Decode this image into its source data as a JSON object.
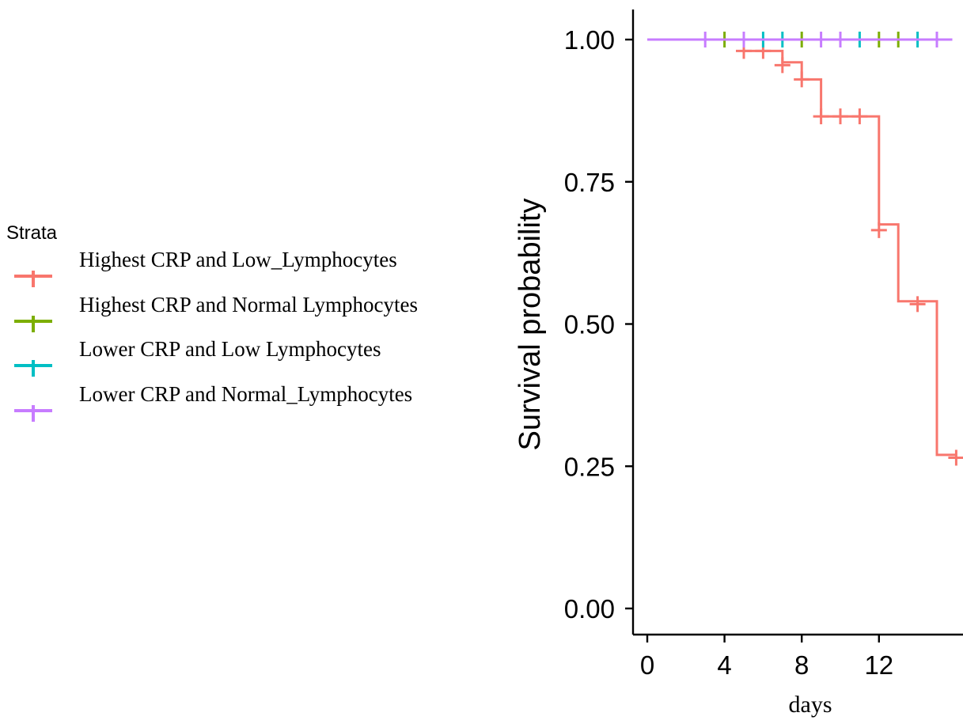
{
  "chart_data": {
    "type": "line",
    "subtype": "kaplan-meier step",
    "title": "",
    "xlabel": "days",
    "ylabel": "Survival probability",
    "xlim": [
      0,
      16
    ],
    "ylim": [
      0,
      1
    ],
    "x_ticks": [
      "0",
      "4",
      "8",
      "12"
    ],
    "y_ticks": [
      "0.00",
      "0.25",
      "0.50",
      "0.75",
      "1.00"
    ],
    "grid": false,
    "legend": {
      "title": "Strata",
      "placement": "left",
      "entries": [
        "Highest  CRP and Low_Lymphocytes",
        "Highest  CRP and Normal Lymphocytes",
        "Lower  CRP and Low Lymphocytes",
        "Lower CRP and Normal_Lymphocytes"
      ]
    },
    "series": [
      {
        "name": "Highest  CRP and Low_Lymphocytes",
        "color": "#F8766D",
        "steps": [
          [
            0,
            1.0
          ],
          [
            5,
            0.98
          ],
          [
            7,
            0.96
          ],
          [
            8,
            0.93
          ],
          [
            9,
            0.865
          ],
          [
            12,
            0.675
          ],
          [
            13,
            0.54
          ],
          [
            15,
            0.27
          ]
        ],
        "end_x": 16,
        "censor_x": [
          5,
          6,
          7,
          8,
          9,
          10,
          11,
          12,
          14,
          16
        ],
        "censor_y": [
          0.98,
          0.98,
          0.955,
          0.93,
          0.865,
          0.865,
          0.865,
          0.665,
          0.535,
          0.265
        ]
      },
      {
        "name": "Highest  CRP and Normal Lymphocytes",
        "color": "#7CAE00",
        "steps": [
          [
            0,
            1.0
          ]
        ],
        "end_x": 14.5,
        "censor_x": [
          4,
          8,
          12,
          13
        ],
        "censor_y": [
          1.0,
          1.0,
          1.0,
          1.0
        ]
      },
      {
        "name": "Lower  CRP and Low Lymphocytes",
        "color": "#00BFC4",
        "steps": [
          [
            0,
            1.0
          ]
        ],
        "end_x": 14.5,
        "censor_x": [
          6,
          7,
          11,
          14
        ],
        "censor_y": [
          1.0,
          1.0,
          1.0,
          1.0
        ]
      },
      {
        "name": "Lower CRP and Normal_Lymphocytes",
        "color": "#C77CFF",
        "steps": [
          [
            0,
            1.0
          ]
        ],
        "end_x": 15.8,
        "censor_x": [
          3,
          5,
          9,
          10,
          15
        ],
        "censor_y": [
          1.0,
          1.0,
          1.0,
          1.0,
          1.0
        ]
      }
    ]
  }
}
